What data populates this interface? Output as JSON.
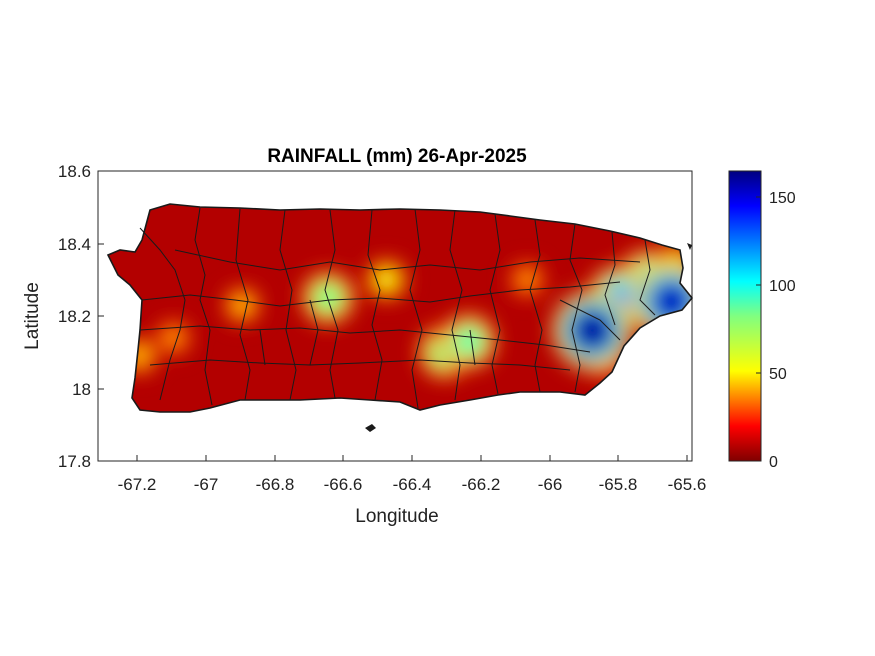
{
  "title": "RAINFALL (mm) 26-Apr-2025",
  "xlabel": "Longitude",
  "ylabel": "Latitude",
  "x_ticks": [
    "-67.2",
    "-67",
    "-66.8",
    "-66.6",
    "-66.4",
    "-66.2",
    "-66",
    "-65.8",
    "-65.6"
  ],
  "y_ticks": [
    "18.6",
    "18.4",
    "18.2",
    "18",
    "17.8"
  ],
  "colorbar_ticks": [
    "150",
    "100",
    "50",
    "0"
  ],
  "chart_data": {
    "type": "heatmap",
    "title": "RAINFALL (mm) 26-Apr-2025",
    "xlabel": "Longitude",
    "ylabel": "Latitude",
    "xlim": [
      -67.3,
      -65.57
    ],
    "ylim": [
      17.8,
      18.6
    ],
    "color_range": [
      0,
      165
    ],
    "colormap": "jet-reversed (dark red = 0, dark blue = max)",
    "hotspots": [
      {
        "lon": -65.86,
        "lat": 18.16,
        "value": 160
      },
      {
        "lon": -65.63,
        "lat": 18.24,
        "value": 155
      },
      {
        "lon": -65.78,
        "lat": 18.25,
        "value": 115
      },
      {
        "lon": -65.7,
        "lat": 18.3,
        "value": 100
      },
      {
        "lon": -65.83,
        "lat": 18.1,
        "value": 75
      },
      {
        "lon": -66.22,
        "lat": 18.13,
        "value": 90
      },
      {
        "lon": -66.29,
        "lat": 18.1,
        "value": 85
      },
      {
        "lon": -66.63,
        "lat": 18.25,
        "value": 85
      },
      {
        "lon": -66.46,
        "lat": 18.3,
        "value": 55
      },
      {
        "lon": -66.88,
        "lat": 18.23,
        "value": 45
      },
      {
        "lon": -67.18,
        "lat": 18.09,
        "value": 45
      },
      {
        "lon": -67.08,
        "lat": 18.14,
        "value": 40
      },
      {
        "lon": -66.05,
        "lat": 18.3,
        "value": 40
      },
      {
        "lon": -65.62,
        "lat": 18.34,
        "value": 60
      }
    ]
  }
}
